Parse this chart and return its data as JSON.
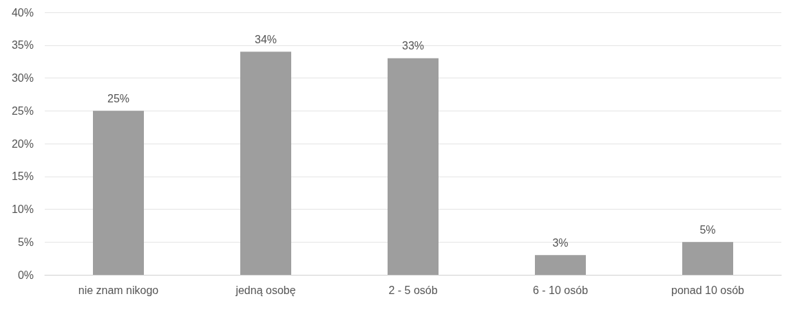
{
  "chart_data": {
    "type": "bar",
    "categories": [
      "nie znam nikogo",
      "jedną osobę",
      "2 - 5 osób",
      "6 - 10 osób",
      "ponad 10 osób"
    ],
    "values": [
      25,
      34,
      33,
      3,
      5
    ],
    "value_labels": [
      "25%",
      "34%",
      "33%",
      "3%",
      "5%"
    ],
    "color": "#9e9e9e",
    "ylim": [
      0,
      40
    ],
    "yticks": [
      {
        "value": 0,
        "label": "0%"
      },
      {
        "value": 5,
        "label": "5%"
      },
      {
        "value": 10,
        "label": "10%"
      },
      {
        "value": 15,
        "label": "15%"
      },
      {
        "value": 20,
        "label": "20%"
      },
      {
        "value": 25,
        "label": "25%"
      },
      {
        "value": 30,
        "label": "30%"
      },
      {
        "value": 35,
        "label": "35%"
      },
      {
        "value": 40,
        "label": "40%"
      }
    ],
    "grid": "y"
  }
}
